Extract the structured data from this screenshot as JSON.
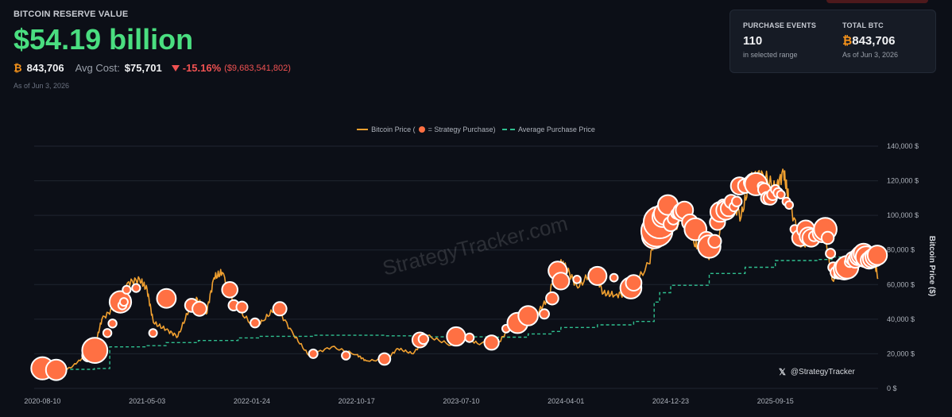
{
  "header": {
    "title": "BITCOIN RESERVE VALUE",
    "value": "$54.19 billion",
    "btc_symbol": "₿",
    "btc_amount": "843,706",
    "avg_cost_label": "Avg Cost:",
    "avg_cost": "$75,701",
    "change_pct": "-15.16%",
    "change_abs": "($9,683,541,802)",
    "as_of": "As of Jun 3, 2026"
  },
  "card": {
    "purchase_events_label": "PURCHASE EVENTS",
    "purchase_events_value": "110",
    "purchase_events_sub": "in selected range",
    "total_btc_label": "TOTAL BTC",
    "total_btc_symbol": "₿",
    "total_btc_value": "843,706",
    "total_btc_sub": "As of Jun 3, 2026"
  },
  "legend": {
    "price_label_a": "Bitcoin Price (",
    "price_label_b": " = Strategy Purchase)",
    "avg_label": "Average Purchase Price"
  },
  "watermark": "StrategyTracker.com",
  "credit": {
    "icon": "x-logo-icon",
    "text": "@StrategyTracker"
  },
  "colors": {
    "price": "#f0a030",
    "purchase": "#ff7043",
    "average": "#2fbf8f",
    "positive": "#4ade80",
    "negative": "#f05252",
    "btc": "#f7931a"
  },
  "chart_data": {
    "type": "line",
    "title": "",
    "xlabel": "",
    "ylabel": "Bitcoin Price ($)",
    "x_tick_labels": [
      "2020-08-10",
      "2021-05-03",
      "2022-01-24",
      "2022-10-17",
      "2023-07-10",
      "2024-04-01",
      "2024-12-23",
      "2025-09-15"
    ],
    "y_ticks": [
      0,
      20000,
      40000,
      60000,
      80000,
      100000,
      120000,
      140000
    ],
    "y_tick_labels": [
      "0 $",
      "20,000 $",
      "40,000 $",
      "60,000 $",
      "80,000 $",
      "100,000 $",
      "120,000 $",
      "140,000 $"
    ],
    "ylim": [
      0,
      140000
    ],
    "xlim": [
      "2020-07-20",
      "2026-06-03"
    ],
    "y_axis_side": "right",
    "grid": true,
    "legend_position": "top-center",
    "series": [
      {
        "name": "Bitcoin Price",
        "dates": [
          "2020-08-10",
          "2020-09-15",
          "2020-10-20",
          "2020-11-25",
          "2020-12-20",
          "2021-01-08",
          "2021-02-10",
          "2021-03-14",
          "2021-04-14",
          "2021-05-03",
          "2021-05-19",
          "2021-06-20",
          "2021-07-20",
          "2021-08-20",
          "2021-09-07",
          "2021-09-30",
          "2021-10-20",
          "2021-11-10",
          "2021-12-10",
          "2022-01-24",
          "2022-02-20",
          "2022-03-28",
          "2022-05-10",
          "2022-06-18",
          "2022-08-15",
          "2022-10-17",
          "2022-11-10",
          "2022-12-30",
          "2023-01-30",
          "2023-03-10",
          "2023-04-14",
          "2023-06-15",
          "2023-07-10",
          "2023-08-20",
          "2023-10-15",
          "2023-11-15",
          "2023-12-15",
          "2024-01-15",
          "2024-02-15",
          "2024-03-14",
          "2024-04-01",
          "2024-05-01",
          "2024-06-10",
          "2024-07-05",
          "2024-08-05",
          "2024-09-07",
          "2024-10-29",
          "2024-11-22",
          "2024-12-17",
          "2025-01-10",
          "2025-01-21",
          "2025-02-20",
          "2025-03-10",
          "2025-04-08",
          "2025-05-22",
          "2025-06-20",
          "2025-07-14",
          "2025-08-14",
          "2025-09-15",
          "2025-10-06",
          "2025-10-20",
          "2025-11-21",
          "2025-12-20",
          "2026-01-14",
          "2026-02-06",
          "2026-03-15",
          "2026-04-15",
          "2026-05-20",
          "2026-06-03"
        ],
        "values": [
          11700,
          10800,
          11900,
          18500,
          23000,
          40000,
          47000,
          61000,
          63000,
          57000,
          38000,
          34000,
          30000,
          47000,
          52000,
          43000,
          64000,
          67000,
          48000,
          37000,
          39000,
          47000,
          31000,
          19000,
          24000,
          19500,
          16000,
          16500,
          23000,
          20000,
          30400,
          25000,
          30500,
          26000,
          27000,
          37000,
          43000,
          42000,
          52000,
          73000,
          70000,
          58000,
          69000,
          55000,
          54000,
          55000,
          72000,
          99000,
          106000,
          94000,
          108000,
          84000,
          80000,
          76000,
          111000,
          99000,
          122000,
          124000,
          115000,
          125000,
          108000,
          82000,
          88000,
          97000,
          63000,
          72000,
          75000,
          78000,
          64000
        ]
      },
      {
        "name": "Average Purchase Price",
        "dates": [
          "2020-08-10",
          "2020-12-20",
          "2021-01-28",
          "2021-05-03",
          "2021-06-20",
          "2021-09-10",
          "2021-12-20",
          "2022-02-10",
          "2022-06-30",
          "2022-12-30",
          "2023-04-14",
          "2023-09-25",
          "2023-12-27",
          "2024-02-26",
          "2024-03-19",
          "2024-06-20",
          "2024-09-20",
          "2024-11-11",
          "2024-11-25",
          "2024-12-23",
          "2025-03-31",
          "2025-06-30",
          "2025-09-15",
          "2025-12-31",
          "2026-02-06",
          "2026-06-03"
        ],
        "values": [
          11000,
          11500,
          24000,
          24700,
          26500,
          27700,
          29200,
          30100,
          30700,
          30400,
          29800,
          29600,
          31500,
          32900,
          35200,
          36700,
          38700,
          49900,
          55300,
          59600,
          66400,
          70000,
          73900,
          74500,
          75900,
          75701
        ]
      }
    ],
    "purchases": {
      "name": "Strategy Purchase",
      "dates": [
        "2020-08-10",
        "2020-09-14",
        "2020-12-04",
        "2020-12-21",
        "2021-01-22",
        "2021-02-04",
        "2021-02-24",
        "2021-03-01",
        "2021-03-05",
        "2021-03-12",
        "2021-04-05",
        "2021-05-18",
        "2021-06-21",
        "2021-08-24",
        "2021-09-13",
        "2021-11-29",
        "2021-12-09",
        "2021-12-30",
        "2022-02-01",
        "2022-04-05",
        "2022-06-29",
        "2022-09-20",
        "2022-12-27",
        "2023-03-27",
        "2023-04-05",
        "2023-06-27",
        "2023-07-31",
        "2023-09-25",
        "2023-11-01",
        "2023-11-30",
        "2023-12-27",
        "2024-02-06",
        "2024-02-26",
        "2024-03-11",
        "2024-03-19",
        "2024-04-29",
        "2024-06-20",
        "2024-08-01",
        "2024-09-13",
        "2024-09-20",
        "2024-11-11",
        "2024-11-18",
        "2024-11-25",
        "2024-12-02",
        "2024-12-09",
        "2024-12-16",
        "2024-12-23",
        "2024-12-30",
        "2025-01-06",
        "2025-01-13",
        "2025-01-21",
        "2025-01-27",
        "2025-02-10",
        "2025-02-24",
        "2025-03-17",
        "2025-03-24",
        "2025-03-31",
        "2025-04-14",
        "2025-04-21",
        "2025-04-28",
        "2025-05-05",
        "2025-05-12",
        "2025-05-19",
        "2025-05-26",
        "2025-06-02",
        "2025-06-09",
        "2025-06-16",
        "2025-06-23",
        "2025-06-30",
        "2025-07-14",
        "2025-07-21",
        "2025-07-28",
        "2025-08-11",
        "2025-08-18",
        "2025-08-25",
        "2025-09-02",
        "2025-09-08",
        "2025-09-15",
        "2025-09-22",
        "2025-09-29",
        "2025-10-13",
        "2025-10-20",
        "2025-11-03",
        "2025-11-17",
        "2025-12-01",
        "2025-12-08",
        "2025-12-15",
        "2025-12-22",
        "2026-01-05",
        "2026-01-12",
        "2026-01-20",
        "2026-01-26",
        "2026-02-02",
        "2026-02-09",
        "2026-02-17",
        "2026-02-23",
        "2026-03-02",
        "2026-03-09",
        "2026-03-16",
        "2026-03-23",
        "2026-03-30",
        "2026-04-06",
        "2026-04-13",
        "2026-04-20",
        "2026-04-27",
        "2026-05-04",
        "2026-05-11",
        "2026-05-18",
        "2026-05-26",
        "2026-06-01"
      ],
      "values": [
        11600,
        10700,
        19000,
        22000,
        32000,
        37500,
        50000,
        48000,
        50000,
        57000,
        58000,
        32000,
        52000,
        48000,
        46000,
        57000,
        48000,
        47000,
        37800,
        46000,
        20000,
        19000,
        17000,
        28000,
        28500,
        30000,
        29300,
        26500,
        34500,
        37800,
        42000,
        43000,
        52000,
        68000,
        62000,
        63000,
        65000,
        64000,
        58000,
        61000,
        88000,
        91000,
        96000,
        99000,
        101000,
        106000,
        95000,
        98000,
        101000,
        101000,
        102000,
        103000,
        96000,
        92000,
        84000,
        86000,
        82000,
        85000,
        96000,
        102000,
        106000,
        103000,
        104000,
        108000,
        105000,
        108000,
        117000,
        118000,
        117000,
        119000,
        120000,
        118000,
        117000,
        115000,
        110000,
        110000,
        112000,
        115000,
        113000,
        112000,
        108000,
        106000,
        92000,
        87000,
        92000,
        88000,
        87000,
        88000,
        89000,
        90000,
        92000,
        87000,
        78000,
        70000,
        67000,
        66000,
        68000,
        69000,
        70000,
        73000,
        75000,
        74000,
        76000,
        77000,
        78000,
        76000,
        74000,
        75000,
        76000,
        77000
      ],
      "sizes_btc": [
        21454,
        16796,
        2574,
        29646,
        314,
        295,
        19452,
        328,
        205,
        262,
        253,
        229,
        13005,
        3907,
        5050,
        7002,
        1434,
        1914,
        660,
        4167,
        480,
        301,
        2395,
        6455,
        1045,
        12333,
        467,
        5445,
        155,
        16130,
        14620,
        850,
        3000,
        12000,
        9245,
        122,
        11931,
        169,
        18300,
        7420,
        27200,
        51780,
        55500,
        15400,
        21550,
        15350,
        5262,
        2138,
        1070,
        2530,
        11000,
        10107,
        7633,
        20356,
        130,
        6911,
        22048,
        3459,
        6556,
        15355,
        1895,
        13390,
        7390,
        4020,
        705,
        1045,
        10100,
        245,
        4980,
        4225,
        6220,
        21021,
        155,
        3081,
        3081,
        4048,
        1955,
        525,
        850,
        196,
        220,
        168,
        397,
        8178,
        10624,
        10624,
        10645,
        1229,
        1287,
        13627,
        22305,
        2932,
        855,
        1142,
        2486,
        592,
        3015,
        17994,
        22337,
        1031,
        4225,
        6000,
        8500,
        12000,
        15000,
        18000,
        9000,
        11000,
        13000,
        14000
      ]
    }
  }
}
